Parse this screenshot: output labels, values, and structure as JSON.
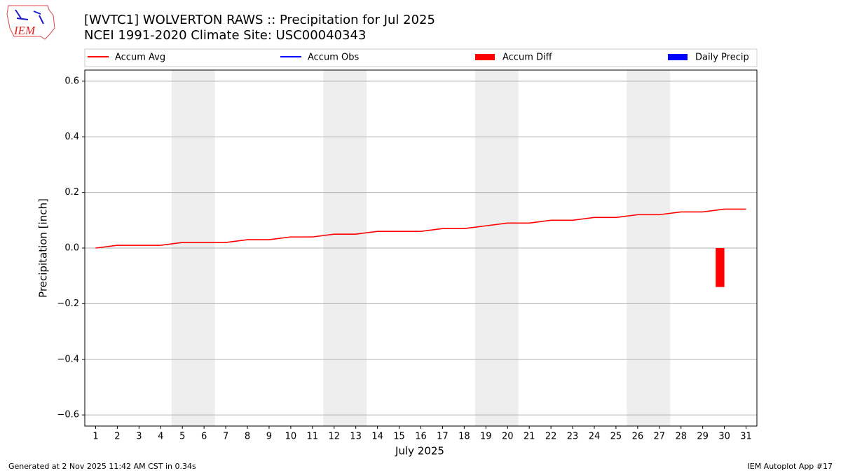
{
  "chart_data": {
    "type": "line",
    "title": "[WVTC1] WOLVERTON RAWS :: Precipitation for Jul 2025",
    "subtitle": "NCEI 1991-2020 Climate Site: USC00040343",
    "logo_text": "IEM",
    "x_label": "July 2025",
    "y_label": "Precipitation [inch]",
    "footer_left": "Generated at 2 Nov 2025 11:42 AM CST in 0.34s",
    "footer_right": "IEM Autoplot App #17",
    "x": [
      1,
      2,
      3,
      4,
      5,
      6,
      7,
      8,
      9,
      10,
      11,
      12,
      13,
      14,
      15,
      16,
      17,
      18,
      19,
      20,
      21,
      22,
      23,
      24,
      25,
      26,
      27,
      28,
      29,
      30,
      31
    ],
    "xlim": [
      0.5,
      31.5
    ],
    "xticks": [
      1,
      2,
      3,
      4,
      5,
      6,
      7,
      8,
      9,
      10,
      11,
      12,
      13,
      14,
      15,
      16,
      17,
      18,
      19,
      20,
      21,
      22,
      23,
      24,
      25,
      26,
      27,
      28,
      29,
      30,
      31
    ],
    "ylim": [
      -0.64,
      0.64
    ],
    "yticks": [
      {
        "value": -0.6,
        "label": "−0.6"
      },
      {
        "value": -0.4,
        "label": "−0.4"
      },
      {
        "value": -0.2,
        "label": "−0.2"
      },
      {
        "value": 0,
        "label": "0.0"
      },
      {
        "value": 0.2,
        "label": "0.2"
      },
      {
        "value": 0.4,
        "label": "0.4"
      },
      {
        "value": 0.6,
        "label": "0.6"
      }
    ],
    "grid": true,
    "series": [
      {
        "name": "Accum Avg",
        "color": "#ff0000",
        "kind": "line",
        "values": [
          0,
          0.01,
          0.01,
          0.01,
          0.02,
          0.02,
          0.02,
          0.03,
          0.03,
          0.04,
          0.04,
          0.05,
          0.05,
          0.06,
          0.06,
          0.06,
          0.07,
          0.07,
          0.08,
          0.09,
          0.09,
          0.1,
          0.1,
          0.11,
          0.11,
          0.12,
          0.12,
          0.13,
          0.13,
          0.14,
          0.14
        ]
      },
      {
        "name": "Accum Obs",
        "color": "#0000ff",
        "kind": "line",
        "values": [
          null,
          null,
          null,
          null,
          null,
          null,
          null,
          null,
          null,
          null,
          null,
          null,
          null,
          null,
          null,
          null,
          null,
          null,
          null,
          null,
          null,
          null,
          null,
          null,
          null,
          null,
          null,
          null,
          null,
          null,
          null
        ]
      },
      {
        "name": "Accum Diff",
        "color": "#ff0000",
        "kind": "bar",
        "values": [
          null,
          null,
          null,
          null,
          null,
          null,
          null,
          null,
          null,
          null,
          null,
          null,
          null,
          null,
          null,
          null,
          null,
          null,
          null,
          null,
          null,
          null,
          null,
          null,
          null,
          null,
          null,
          null,
          null,
          -0.14,
          null
        ]
      },
      {
        "name": "Daily Precip",
        "color": "#0000ff",
        "kind": "bar",
        "values": [
          null,
          null,
          null,
          null,
          null,
          null,
          null,
          null,
          null,
          null,
          null,
          null,
          null,
          null,
          null,
          null,
          null,
          null,
          null,
          null,
          null,
          null,
          null,
          null,
          null,
          null,
          null,
          null,
          null,
          null,
          null
        ]
      }
    ]
  }
}
